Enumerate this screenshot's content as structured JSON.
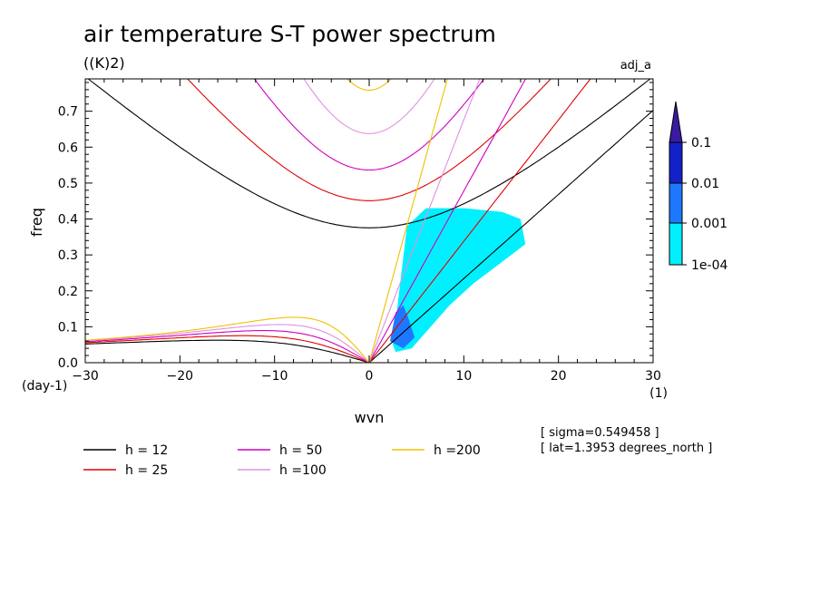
{
  "chart_data": {
    "type": "line",
    "title": "air temperature S-T power spectrum",
    "units": "((K)2)",
    "label_right": "adj_a",
    "xlabel": "wvn",
    "ylabel": "freq",
    "x_unit_label": "(1)",
    "y_unit_label": "(day-1)",
    "xlim": [
      -30,
      30
    ],
    "ylim": [
      0,
      0.79
    ],
    "xticks": [
      -30,
      -20,
      -10,
      0,
      10,
      20,
      30
    ],
    "xtick_labels": [
      "−30",
      "−20",
      "−10",
      "0",
      "10",
      "20",
      "30"
    ],
    "yticks": [
      0,
      0.1,
      0.2,
      0.3,
      0.4,
      0.5,
      0.6,
      0.7
    ],
    "ytick_labels": [
      "0.0",
      "0.1",
      "0.2",
      "0.3",
      "0.4",
      "0.5",
      "0.6",
      "0.7"
    ],
    "colorbar": {
      "levels": [
        "0.1",
        "0.01",
        "0.001",
        "1e-04"
      ],
      "colors": [
        "#3a1aa0",
        "#1420c8",
        "#1e78ff",
        "#00f0ff"
      ]
    },
    "series": [
      {
        "name": "h = 12",
        "h": 12,
        "color": "#000000"
      },
      {
        "name": "h = 25",
        "h": 25,
        "color": "#e00000"
      },
      {
        "name": "h = 50",
        "h": 50,
        "color": "#d000c0"
      },
      {
        "name": "h =100",
        "h": 100,
        "color": "#e090e0"
      },
      {
        "name": "h =200",
        "h": 200,
        "color": "#f0c000"
      }
    ],
    "power_regions": [
      {
        "level": "1e-04",
        "points": [
          [
            2.5,
            0.05
          ],
          [
            4.0,
            0.38
          ],
          [
            6.0,
            0.43
          ],
          [
            10.0,
            0.43
          ],
          [
            14.0,
            0.42
          ],
          [
            16.0,
            0.4
          ],
          [
            16.5,
            0.33
          ],
          [
            14.0,
            0.28
          ],
          [
            11.0,
            0.22
          ],
          [
            8.5,
            0.16
          ],
          [
            6.5,
            0.1
          ],
          [
            4.5,
            0.04
          ],
          [
            2.8,
            0.03
          ]
        ]
      },
      {
        "level": "0.001",
        "points": [
          [
            2.2,
            0.06
          ],
          [
            2.8,
            0.14
          ],
          [
            3.6,
            0.16
          ],
          [
            4.2,
            0.12
          ],
          [
            4.8,
            0.07
          ],
          [
            3.6,
            0.04
          ]
        ]
      }
    ]
  },
  "annotations": {
    "sigma": "[ sigma=0.549458 ]",
    "lat": "[ lat=1.3953 degrees_north ]"
  }
}
